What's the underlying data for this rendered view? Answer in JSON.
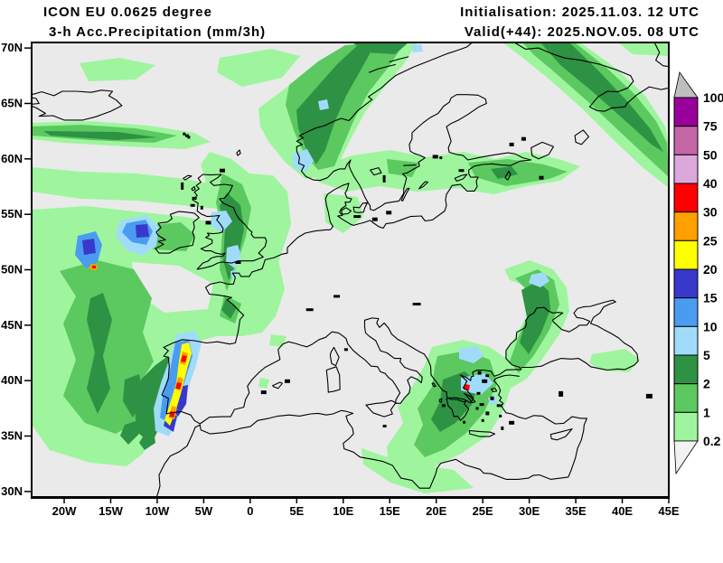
{
  "header": {
    "model": "ICON EU 0.0625 degree",
    "parameter": "3-h Acc.Precipitation (mm/3h)",
    "initialisation": "Initialisation: 2025.11.03. 12 UTC",
    "valid": "Valid(+44): 2025.NOV.05. 08 UTC"
  },
  "map": {
    "background": "#EAEAEA",
    "coastline_color": "#000000",
    "frame_color": "#000000",
    "lat_labels": [
      "70N",
      "65N",
      "60N",
      "55N",
      "50N",
      "45N",
      "40N",
      "35N",
      "30N"
    ],
    "lon_labels": [
      "20W",
      "15W",
      "10W",
      "5W",
      "0",
      "5E",
      "10E",
      "15E",
      "20E",
      "25E",
      "30E",
      "35E",
      "40E",
      "45E"
    ]
  },
  "legend": {
    "boundary_labels": [
      "100",
      "75",
      "50",
      "40",
      "30",
      "25",
      "20",
      "15",
      "10",
      "5",
      "2",
      "1",
      "0.2"
    ],
    "segment_colors_top_to_bottom": [
      "#9A009A",
      "#C465A5",
      "#DCA8DC",
      "#FF0000",
      "#FFA000",
      "#FFFF00",
      "#3838CC",
      "#4A9CF0",
      "#A0DCFA",
      "#2E9244",
      "#5BC95F",
      "#9EF59E"
    ],
    "over_range_arrow_color": "#BEBEBE",
    "under_range_arrow_color": "#F2F2F2"
  }
}
